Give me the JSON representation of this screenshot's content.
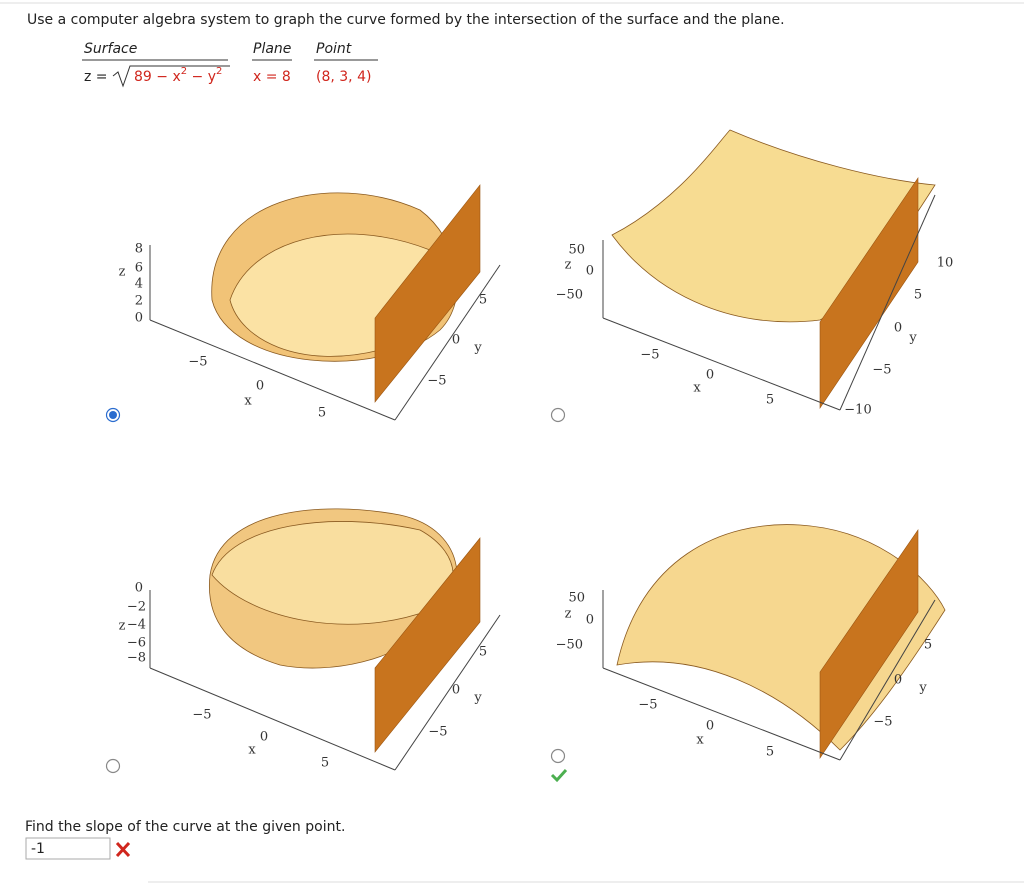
{
  "question": "Use a computer algebra system to graph the curve formed by the intersection of the surface and the plane.",
  "table": {
    "headers": [
      "Surface",
      "Plane",
      "Point"
    ],
    "surface": {
      "prefix": "z =",
      "radicand": [
        "89 − x",
        "2",
        " − y",
        "2"
      ]
    },
    "plane": "x = 8",
    "point": "(8, 3, 4)"
  },
  "options": [
    {
      "z_label": "z",
      "z_ticks": [
        "8",
        "6",
        "4",
        "2",
        "0"
      ],
      "x_label": "x",
      "x_ticks": [
        "−5",
        "0",
        "5"
      ],
      "y_label": "y",
      "y_ticks": [
        "−5",
        "0",
        "5"
      ]
    },
    {
      "z_label": "z",
      "z_ticks": [
        "50",
        "0",
        "−50"
      ],
      "x_label": "x",
      "x_ticks": [
        "−5",
        "0",
        "5"
      ],
      "y_label": "y",
      "y_ticks": [
        "−10",
        "−5",
        "0",
        "5",
        "10"
      ]
    },
    {
      "z_label": "z",
      "z_ticks": [
        "0",
        "−2",
        "−4",
        "−6",
        "−8"
      ],
      "x_label": "x",
      "x_ticks": [
        "−5",
        "0",
        "5"
      ],
      "y_label": "y",
      "y_ticks": [
        "−5",
        "0",
        "5"
      ]
    },
    {
      "z_label": "z",
      "z_ticks": [
        "50",
        "0",
        "−50"
      ],
      "x_label": "x",
      "x_ticks": [
        "−5",
        "0",
        "5"
      ],
      "y_label": "y",
      "y_ticks": [
        "−5",
        "0",
        "5"
      ]
    }
  ],
  "selected_option": 0,
  "correct_option": 3,
  "prompt": "Find the slope of the curve at the given point.",
  "answer": "-1"
}
